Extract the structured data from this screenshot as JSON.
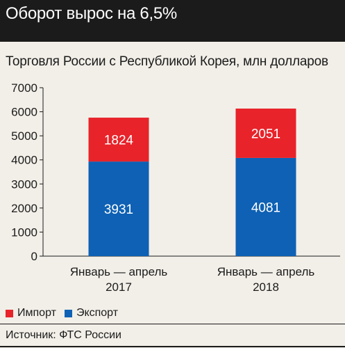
{
  "header": {
    "title": "Оборот вырос на 6,5%"
  },
  "chart_data": {
    "type": "bar",
    "stacked": true,
    "title": "Торговля России с Республикой Корея, млн долларов",
    "categories": [
      [
        "Январь — апрель",
        "2017"
      ],
      [
        "Январь — апрель",
        "2018"
      ]
    ],
    "series": [
      {
        "name": "Экспорт",
        "color": "#0e61b4",
        "values": [
          3931,
          4081
        ]
      },
      {
        "name": "Импорт",
        "color": "#e8232a",
        "values": [
          1824,
          2051
        ]
      }
    ],
    "ylim": [
      0,
      7000
    ],
    "yticks": [
      "0",
      "1000",
      "2000",
      "3000",
      "4000",
      "5000",
      "6000",
      "7000"
    ],
    "grid": false,
    "legend_position": "bottom-left"
  },
  "legend": [
    {
      "label": "Импорт",
      "color": "#e8232a"
    },
    {
      "label": "Экспорт",
      "color": "#0e61b4"
    }
  ],
  "source": "Источник: ФТС России"
}
